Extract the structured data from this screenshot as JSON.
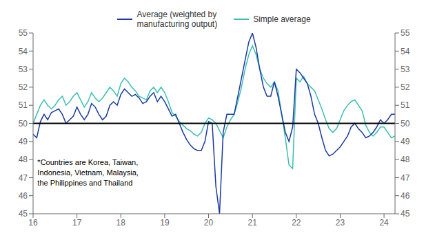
{
  "chart_data": {
    "type": "line",
    "x": [
      16.0,
      16.083,
      16.167,
      16.25,
      16.333,
      16.417,
      16.5,
      16.583,
      16.667,
      16.75,
      16.833,
      16.917,
      17.0,
      17.083,
      17.167,
      17.25,
      17.333,
      17.417,
      17.5,
      17.583,
      17.667,
      17.75,
      17.833,
      17.917,
      18.0,
      18.083,
      18.167,
      18.25,
      18.333,
      18.417,
      18.5,
      18.583,
      18.667,
      18.75,
      18.833,
      18.917,
      19.0,
      19.083,
      19.167,
      19.25,
      19.333,
      19.417,
      19.5,
      19.583,
      19.667,
      19.75,
      19.833,
      19.917,
      20.0,
      20.083,
      20.167,
      20.25,
      20.333,
      20.417,
      20.5,
      20.583,
      20.667,
      20.75,
      20.833,
      20.917,
      21.0,
      21.083,
      21.167,
      21.25,
      21.333,
      21.417,
      21.5,
      21.583,
      21.667,
      21.75,
      21.833,
      21.917,
      22.0,
      22.083,
      22.167,
      22.25,
      22.333,
      22.417,
      22.5,
      22.583,
      22.667,
      22.75,
      22.833,
      22.917,
      23.0,
      23.083,
      23.167,
      23.25,
      23.333,
      23.417,
      23.5,
      23.583,
      23.667,
      23.75,
      23.833,
      23.917,
      24.0,
      24.083,
      24.167,
      24.25
    ],
    "series": [
      {
        "name": "Average (weighted by\nmanufacturing output)",
        "color": "#1a3a9f",
        "values": [
          49.4,
          49.2,
          50.1,
          50.5,
          50.2,
          50.6,
          50.7,
          50.8,
          50.5,
          50.0,
          50.2,
          50.4,
          50.9,
          50.5,
          50.2,
          50.5,
          51.1,
          50.9,
          50.5,
          50.2,
          50.4,
          51.0,
          51.2,
          51.0,
          51.6,
          51.9,
          51.7,
          51.5,
          51.6,
          51.4,
          51.1,
          51.2,
          51.5,
          51.7,
          51.2,
          51.5,
          51.2,
          50.8,
          50.4,
          50.5,
          50.0,
          49.5,
          49.1,
          48.8,
          48.6,
          48.5,
          48.5,
          49.0,
          50.1,
          50.0,
          46.5,
          45.0,
          49.5,
          50.5,
          50.5,
          50.5,
          51.5,
          52.5,
          53.5,
          54.5,
          55.0,
          54.2,
          53.0,
          52.0,
          51.5,
          51.5,
          52.3,
          51.5,
          50.5,
          49.5,
          49.0,
          49.8,
          53.0,
          52.8,
          52.5,
          52.2,
          51.5,
          50.5,
          50.0,
          49.2,
          48.5,
          48.2,
          48.3,
          48.5,
          48.7,
          49.0,
          49.3,
          49.8,
          50.0,
          49.7,
          49.5,
          49.2,
          49.3,
          49.5,
          49.8,
          50.2,
          50.0,
          50.2,
          50.5,
          50.5
        ]
      },
      {
        "name": "Simple average",
        "color": "#3abfb0",
        "values": [
          50.0,
          50.5,
          51.0,
          51.3,
          51.0,
          50.8,
          51.0,
          51.3,
          51.5,
          51.0,
          51.2,
          51.5,
          51.7,
          51.3,
          50.9,
          51.2,
          51.7,
          51.4,
          51.2,
          51.4,
          51.7,
          52.0,
          51.8,
          51.5,
          52.2,
          52.5,
          52.3,
          52.0,
          51.8,
          51.5,
          51.4,
          51.3,
          51.8,
          52.0,
          51.7,
          52.0,
          51.7,
          51.2,
          50.6,
          50.4,
          50.1,
          49.9,
          49.7,
          49.6,
          49.4,
          49.3,
          49.5,
          50.0,
          50.3,
          50.2,
          50.0,
          49.6,
          49.2,
          49.8,
          50.2,
          50.5,
          51.2,
          52.0,
          53.0,
          53.8,
          54.3,
          53.8,
          53.0,
          52.5,
          52.2,
          52.0,
          52.3,
          51.8,
          50.5,
          49.2,
          47.7,
          47.5,
          52.5,
          52.3,
          52.6,
          52.2,
          52.0,
          51.8,
          51.3,
          50.8,
          50.2,
          49.7,
          49.5,
          49.7,
          50.2,
          50.7,
          51.0,
          51.2,
          51.3,
          51.0,
          50.7,
          49.9,
          49.5,
          49.3,
          49.5,
          49.8,
          49.8,
          49.5,
          49.2,
          49.3
        ]
      }
    ],
    "xlim": [
      16,
      24.25
    ],
    "xticks": [
      16,
      17,
      18,
      19,
      20,
      21,
      22,
      23,
      24
    ],
    "ylim": [
      45,
      55
    ],
    "yticks": [
      45,
      46,
      47,
      48,
      49,
      50,
      51,
      52,
      53,
      54,
      55
    ],
    "y2lim": [
      45,
      55
    ],
    "y2ticks": [
      45,
      46,
      47,
      48,
      49,
      50,
      51,
      52,
      53,
      54,
      55
    ],
    "hline": {
      "y": 50,
      "color": "#000000"
    },
    "annotations": [
      {
        "text": "*Countries are Korea, Taiwan,\nIndonesia, Vietnam, Malaysia,\nthe Philippines and Thailand",
        "x": 16.1,
        "y": 48.1
      }
    ],
    "grid": false,
    "legend": "top"
  }
}
